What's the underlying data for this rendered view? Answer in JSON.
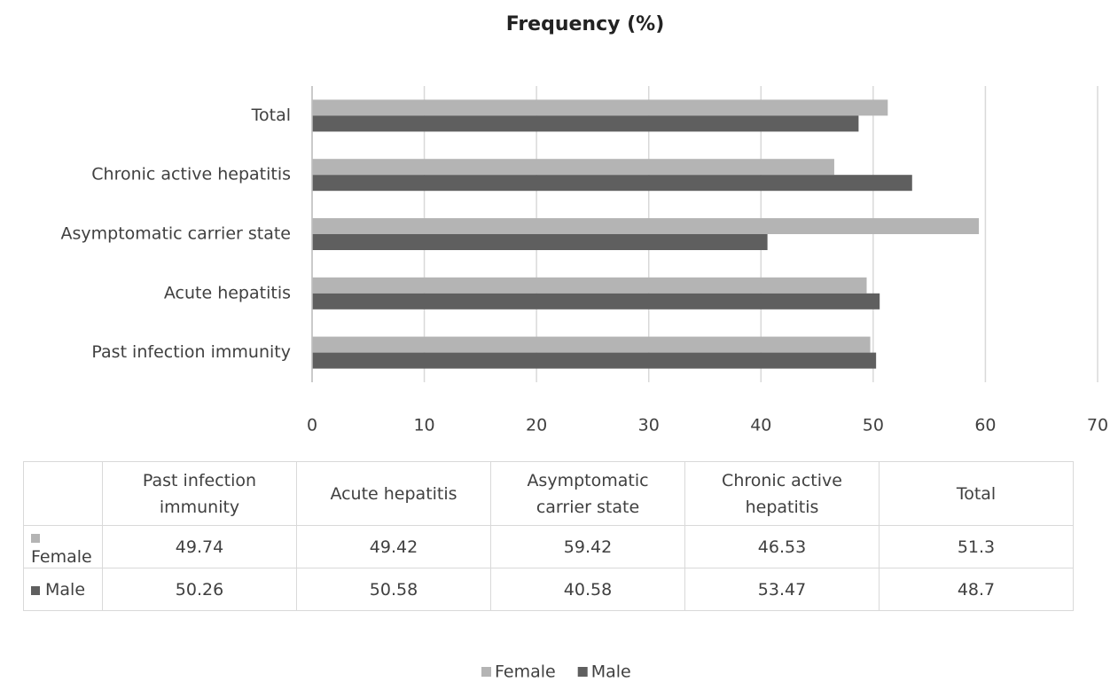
{
  "chart_data": {
    "type": "bar",
    "orientation": "horizontal",
    "title": "Frequency (%)",
    "categories": [
      "Past infection immunity",
      "Acute hepatitis",
      "Asymptomatic carrier state",
      "Chronic active hepatitis",
      "Total"
    ],
    "series": [
      {
        "name": "Female",
        "color": "#b4b4b4",
        "values": [
          49.74,
          49.42,
          59.42,
          46.53,
          51.3
        ]
      },
      {
        "name": "Male",
        "color": "#5f5f5f",
        "values": [
          50.26,
          50.58,
          40.58,
          53.47,
          48.7
        ]
      }
    ],
    "xlim": [
      0,
      70
    ],
    "xticks": [
      0,
      10,
      20,
      30,
      40,
      50,
      60,
      70
    ],
    "grid": true,
    "legend": "bottom",
    "data_table": true
  }
}
